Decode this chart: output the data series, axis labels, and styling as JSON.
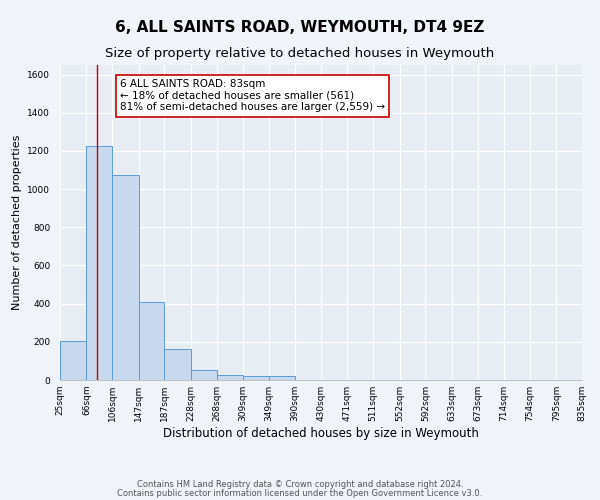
{
  "title": "6, ALL SAINTS ROAD, WEYMOUTH, DT4 9EZ",
  "subtitle": "Size of property relative to detached houses in Weymouth",
  "xlabel": "Distribution of detached houses by size in Weymouth",
  "ylabel": "Number of detached properties",
  "bin_edges": [
    25,
    66,
    106,
    147,
    187,
    228,
    268,
    309,
    349,
    390,
    430,
    471,
    511,
    552,
    592,
    633,
    673,
    714,
    754,
    795,
    835
  ],
  "bar_heights": [
    205,
    1225,
    1075,
    410,
    160,
    55,
    25,
    20,
    20,
    0,
    0,
    0,
    0,
    0,
    0,
    0,
    0,
    0,
    0,
    0
  ],
  "bar_color": "#c9d9ed",
  "bar_edge_color": "#5b9bd5",
  "background_color": "#e8edf4",
  "grid_color": "#d0d8e8",
  "vline_x": 83,
  "vline_color": "#cc0000",
  "annotation_text_line1": "6 ALL SAINTS ROAD: 83sqm",
  "annotation_text_line2": "← 18% of detached houses are smaller (561)",
  "annotation_text_line3": "81% of semi-detached houses are larger (2,559) →",
  "annotation_box_color": "#ffffff",
  "annotation_box_edge_color": "#cc0000",
  "ylim": [
    0,
    1650
  ],
  "yticks": [
    0,
    200,
    400,
    600,
    800,
    1000,
    1200,
    1400,
    1600
  ],
  "footer_line1": "Contains HM Land Registry data © Crown copyright and database right 2024.",
  "footer_line2": "Contains public sector information licensed under the Open Government Licence v3.0.",
  "title_fontsize": 11,
  "subtitle_fontsize": 9.5,
  "xlabel_fontsize": 8.5,
  "ylabel_fontsize": 8,
  "tick_label_fontsize": 6.5,
  "annotation_fontsize": 7.5,
  "footer_fontsize": 6
}
